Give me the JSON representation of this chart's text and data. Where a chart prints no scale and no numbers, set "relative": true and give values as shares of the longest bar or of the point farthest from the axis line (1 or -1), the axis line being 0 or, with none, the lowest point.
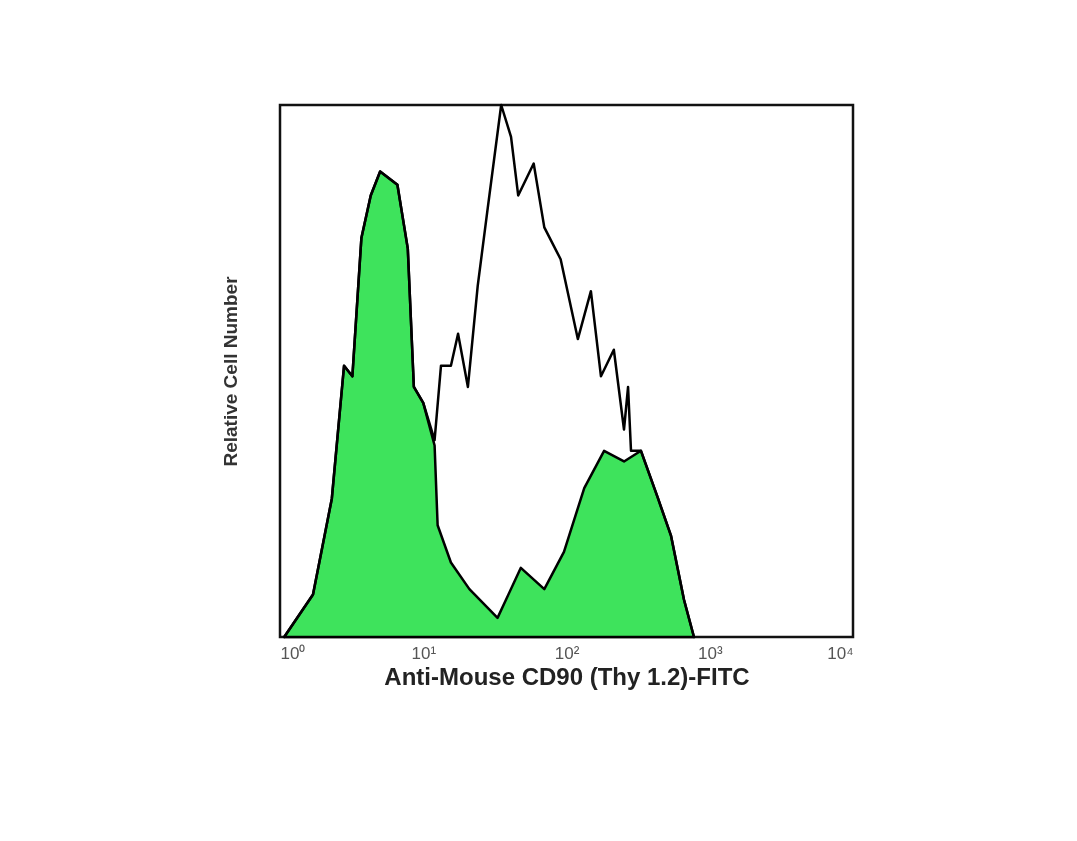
{
  "chart_data": {
    "type": "area",
    "xlabel": "Anti-Mouse CD90 (Thy 1.2)-FITC",
    "ylabel": "Relative Cell Number",
    "relative": true,
    "log": "x",
    "grid": false,
    "xlim": [
      1,
      10000
    ],
    "xticks": [
      {
        "value": 1,
        "label": "10⁰"
      },
      {
        "value": 10,
        "label": "10¹"
      },
      {
        "value": 100,
        "label": "10²"
      },
      {
        "value": 1000,
        "label": "10³"
      },
      {
        "value": 10000,
        "label": "10⁴"
      }
    ],
    "series": [
      {
        "color": "#3ee35c",
        "x": [
          1.07,
          1.7,
          2.3,
          2.8,
          3.2,
          3.7,
          4.3,
          5.0,
          6.6,
          7.8,
          8.6,
          10,
          12,
          12.6,
          15.6,
          21,
          33,
          48,
          70,
          96,
          133,
          183,
          252,
          331,
          436,
          537,
          661,
          776
        ],
        "values": [
          0,
          0.08,
          0.26,
          0.51,
          0.49,
          0.75,
          0.83,
          0.875,
          0.85,
          0.73,
          0.47,
          0.44,
          0.36,
          0.21,
          0.14,
          0.09,
          0.036,
          0.13,
          0.09,
          0.16,
          0.28,
          0.35,
          0.33,
          0.35,
          0.26,
          0.19,
          0.07,
          0
        ]
      },
      {
        "type": "line",
        "color": "#000000",
        "x": [
          1.07,
          1.7,
          2.3,
          2.8,
          3.2,
          3.7,
          4.3,
          5.0,
          6.6,
          7.8,
          8.6,
          10,
          12,
          13.3,
          15.6,
          17.5,
          20.5,
          24,
          28,
          35,
          41,
          46,
          59,
          70,
          91,
          120,
          148,
          174,
          214,
          252,
          269,
          282,
          331,
          436,
          537,
          661,
          776
        ],
        "values": [
          0,
          0.08,
          0.26,
          0.51,
          0.49,
          0.75,
          0.83,
          0.875,
          0.85,
          0.73,
          0.47,
          0.44,
          0.37,
          0.51,
          0.51,
          0.57,
          0.47,
          0.66,
          0.8,
          1,
          0.94,
          0.83,
          0.89,
          0.77,
          0.71,
          0.56,
          0.65,
          0.49,
          0.54,
          0.39,
          0.47,
          0.35,
          0.35,
          0.26,
          0.19,
          0.07,
          0
        ]
      }
    ]
  }
}
